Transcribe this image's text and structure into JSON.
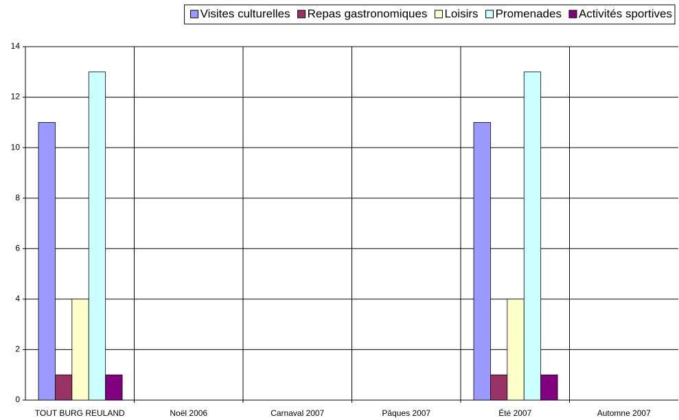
{
  "chart_data": {
    "type": "bar",
    "categories": [
      "TOUT BURG REULAND",
      "Noël 2006",
      "Carnaval 2007",
      "Pâques 2007",
      "Été 2007",
      "Automne 2007"
    ],
    "series": [
      {
        "name": "Visites culturelles",
        "color": "#9999ff",
        "values": [
          11,
          0,
          0,
          0,
          11,
          0
        ]
      },
      {
        "name": "Repas gastronomiques",
        "color": "#993366",
        "values": [
          1,
          0,
          0,
          0,
          1,
          0
        ]
      },
      {
        "name": "Loisirs",
        "color": "#ffffcc",
        "values": [
          4,
          0,
          0,
          0,
          4,
          0
        ]
      },
      {
        "name": "Promenades",
        "color": "#ccffff",
        "values": [
          13,
          0,
          0,
          0,
          13,
          0
        ]
      },
      {
        "name": "Activités sportives",
        "color": "#800080",
        "values": [
          1,
          0,
          0,
          0,
          1,
          0
        ]
      }
    ],
    "ylim": [
      0,
      14
    ],
    "yticks": [
      0,
      2,
      4,
      6,
      8,
      10,
      12,
      14
    ],
    "grid": true,
    "legend": "top"
  }
}
